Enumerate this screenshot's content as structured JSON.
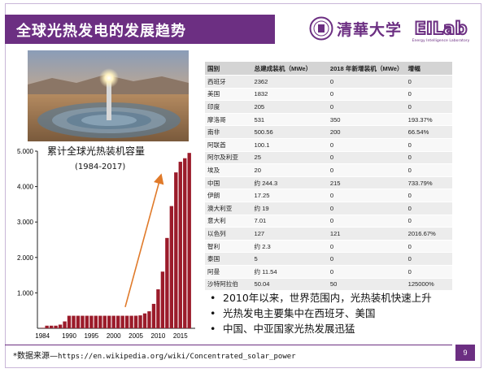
{
  "slide": {
    "title": "全球光热发电的发展趋势",
    "university": "清華大学",
    "lab_logo": "EILab",
    "lab_subtitle": "Energy Intelligence Laboratory",
    "page_number": "9"
  },
  "table": {
    "headers": [
      "国别",
      "总建成装机（MWe）",
      "2018 年新增装机（MWe）",
      "增幅"
    ],
    "rows": [
      [
        "西班牙",
        "2362",
        "0",
        "0"
      ],
      [
        "美国",
        "1832",
        "0",
        "0"
      ],
      [
        "印度",
        "205",
        "0",
        "0"
      ],
      [
        "摩洛哥",
        "531",
        "350",
        "193.37%"
      ],
      [
        "南非",
        "500.56",
        "200",
        "66.54%"
      ],
      [
        "阿联酋",
        "100.1",
        "0",
        "0"
      ],
      [
        "阿尔及利亚",
        "25",
        "0",
        "0"
      ],
      [
        "埃及",
        "20",
        "0",
        "0"
      ],
      [
        "中国",
        "约 244.3",
        "215",
        "733.79%"
      ],
      [
        "伊朗",
        "17.25",
        "0",
        "0"
      ],
      [
        "澳大利亚",
        "约 19",
        "0",
        "0"
      ],
      [
        "意大利",
        "7.01",
        "0",
        "0"
      ],
      [
        "以色列",
        "127",
        "121",
        "2016.67%"
      ],
      [
        "智利",
        "约 2.3",
        "0",
        "0"
      ],
      [
        "泰国",
        "5",
        "0",
        "0"
      ],
      [
        "阿曼",
        "约 11.54",
        "0",
        "0"
      ],
      [
        "沙特阿拉伯",
        "50.04",
        "50",
        "125000%"
      ]
    ]
  },
  "bullets": [
    "2010年以来，世界范围内，光热装机快速上升",
    "光热发电主要集中在西班牙、美国",
    "中国、中亚国家光热发展迅猛"
  ],
  "footer": {
    "source_label": "*数据来源—",
    "source_url": "https://en.wikipedia.org/wiki/Concentrated_solar_power"
  },
  "chart_data": {
    "type": "bar",
    "title": "累计全球光热装机容量",
    "subtitle": "(1984-2017)",
    "xlabel": "",
    "ylabel": "",
    "ylim": [
      0,
      5000
    ],
    "yticks": [
      "1.000",
      "2.000",
      "3.000",
      "4.000",
      "5.000"
    ],
    "xticks": [
      "1984",
      "1990",
      "1995",
      "2000",
      "2005",
      "2010",
      "2015"
    ],
    "x": [
      1984,
      1985,
      1986,
      1987,
      1988,
      1989,
      1990,
      1991,
      1992,
      1993,
      1994,
      1995,
      1996,
      1997,
      1998,
      1999,
      2000,
      2001,
      2002,
      2003,
      2004,
      2005,
      2006,
      2007,
      2008,
      2009,
      2010,
      2011,
      2012,
      2013,
      2014,
      2015,
      2016,
      2017
    ],
    "values": [
      14,
      74,
      74,
      74,
      104,
      194,
      354,
      354,
      354,
      354,
      354,
      354,
      354,
      354,
      354,
      354,
      354,
      354,
      354,
      354,
      354,
      355,
      365,
      420,
      480,
      690,
      1100,
      1600,
      2550,
      3450,
      4400,
      4700,
      4800,
      4950
    ],
    "bar_color": "#9b1b2a",
    "annotation_arrow_color": "#e07a2a",
    "grid": false,
    "legend": "none"
  }
}
